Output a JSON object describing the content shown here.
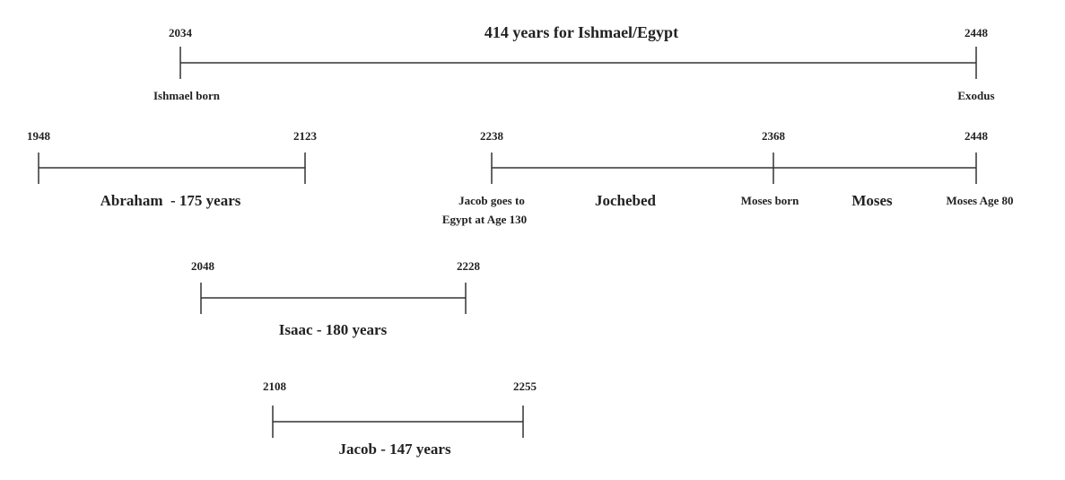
{
  "timelines": [
    {
      "title": "414 years for Ishmael/Egypt",
      "start": "2034",
      "end": "2448",
      "start_label": "Ishmael born",
      "end_label": "Exodus"
    },
    {
      "title": "Abraham  - 175 years",
      "start": "1948",
      "end": "2123"
    },
    {
      "start": "2238",
      "middle": "2368",
      "end": "2448",
      "start_label": [
        "Jacob goes to",
        "Egypt at Age 130"
      ],
      "first_span": "Jochebed",
      "middle_label": "Moses born",
      "second_span": "Moses",
      "end_label": "Moses Age 80"
    },
    {
      "title": "Isaac - 180 years",
      "start": "2048",
      "end": "2228"
    },
    {
      "title": "Jacob - 147 years",
      "start": "2108",
      "end": "2255"
    }
  ]
}
